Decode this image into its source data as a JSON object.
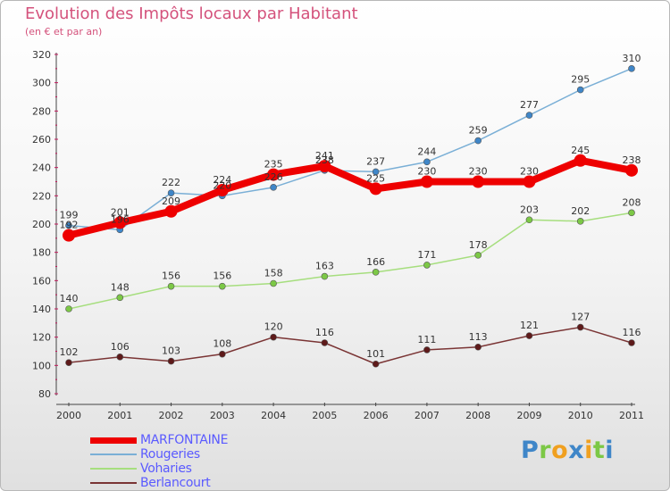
{
  "chart_data": {
    "type": "line",
    "title": "Evolution des Impôts locaux par Habitant",
    "subtitle": "(en € et par an)",
    "x": [
      "2000",
      "2001",
      "2002",
      "2003",
      "2004",
      "2005",
      "2006",
      "2007",
      "2008",
      "2009",
      "2010",
      "2011"
    ],
    "ylim": [
      80,
      320
    ],
    "yticks": [
      80,
      100,
      120,
      140,
      160,
      180,
      200,
      220,
      240,
      260,
      280,
      300,
      320
    ],
    "grid": false,
    "legend_position": "bottom-left",
    "series": [
      {
        "name": "MARFONTAINE",
        "values": [
          192,
          201,
          209,
          224,
          235,
          241,
          225,
          230,
          230,
          230,
          245,
          238
        ],
        "color": "#ee0000",
        "line_width": 8,
        "marker_color": "#ee0000",
        "marker_radius": 7
      },
      {
        "name": "Rougeries",
        "values": [
          199,
          196,
          222,
          220,
          226,
          238,
          237,
          244,
          259,
          277,
          295,
          310
        ],
        "color": "#7aafd6",
        "line_width": 1.5,
        "marker_color": "#3f86c8",
        "marker_radius": 3.5
      },
      {
        "name": "Voharies",
        "values": [
          140,
          148,
          156,
          156,
          158,
          163,
          166,
          171,
          178,
          203,
          202,
          208
        ],
        "color": "#a6de7e",
        "line_width": 1.5,
        "marker_color": "#7cc846",
        "marker_radius": 3.5
      },
      {
        "name": "Berlancourt",
        "values": [
          102,
          106,
          103,
          108,
          120,
          116,
          101,
          111,
          113,
          121,
          127,
          116
        ],
        "color": "#7a3434",
        "line_width": 1.5,
        "marker_color": "#5e1a1a",
        "marker_radius": 3.5
      }
    ]
  },
  "brand": {
    "letters": [
      "P",
      "r",
      "o",
      "x",
      "i",
      "t",
      "i"
    ],
    "colors": [
      "#3f86c8",
      "#7cc846",
      "#f0a020",
      "#3f86c8",
      "#f0a020",
      "#7cc846",
      "#3f86c8"
    ]
  }
}
